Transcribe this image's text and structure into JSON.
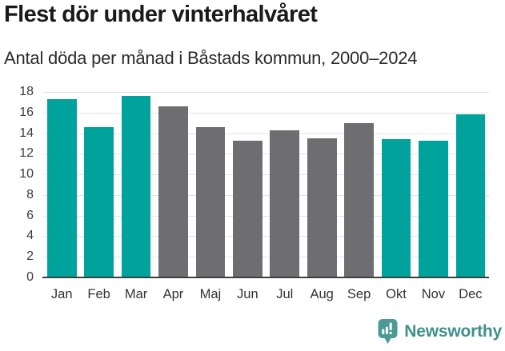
{
  "header": {
    "title": "Flest dör under vinterhalvåret",
    "subtitle": "Antal döda per månad i Båstads kommun, 2000–2024"
  },
  "chart_data": {
    "type": "bar",
    "title": "Flest dör under vinterhalvåret",
    "subtitle": "Antal döda per månad i Båstads kommun, 2000–2024",
    "categories": [
      "Jan",
      "Feb",
      "Mar",
      "Apr",
      "Maj",
      "Jun",
      "Jul",
      "Aug",
      "Sep",
      "Okt",
      "Nov",
      "Dec"
    ],
    "values": [
      17.3,
      14.6,
      17.6,
      16.6,
      14.6,
      13.3,
      14.3,
      13.5,
      15.0,
      13.4,
      13.3,
      15.8
    ],
    "bar_color_keys": [
      "highlight",
      "highlight",
      "highlight",
      "base",
      "base",
      "base",
      "base",
      "base",
      "base",
      "highlight",
      "highlight",
      "highlight"
    ],
    "colors": {
      "highlight": "#00a39c",
      "base": "#6e6e72",
      "gridline": "#e3e3e3",
      "axis_line": "#3f4040"
    },
    "xlabel": "",
    "ylabel": "",
    "ylim": [
      0,
      18
    ],
    "yticks": [
      0,
      2,
      4,
      6,
      8,
      10,
      12,
      14,
      16,
      18
    ],
    "grid": true,
    "legend": false
  },
  "footer": {
    "brand": "Newsworthy",
    "brand_color": "#3e908c",
    "logo_icon": "bar-chart-speech-bubble"
  }
}
